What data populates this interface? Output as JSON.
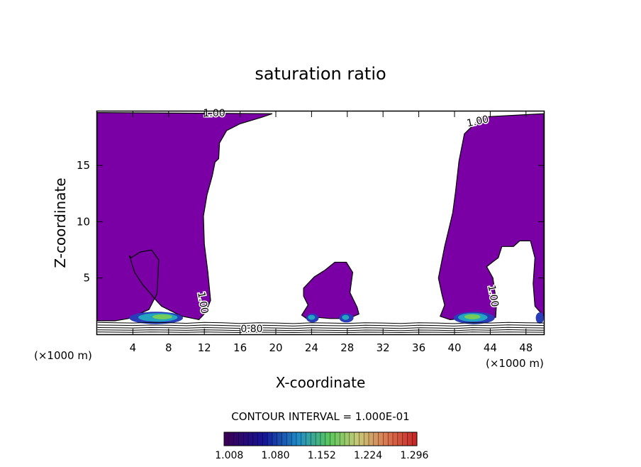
{
  "chart_data": {
    "type": "contour",
    "title": "saturation ratio",
    "xlabel": "X-coordinate",
    "ylabel": "Z-coordinate",
    "x_unit_left": "(×1000 m)",
    "x_unit_right": "(×1000 m)",
    "xlim": [
      0,
      50
    ],
    "ylim": [
      0,
      19.8
    ],
    "xticks": [
      4,
      8,
      12,
      16,
      20,
      24,
      28,
      32,
      36,
      40,
      44,
      48
    ],
    "yticks": [
      5,
      10,
      15
    ],
    "contour_interval_text": "CONTOUR INTERVAL = 1.000E-01",
    "contour_labels": [
      {
        "text": "1.00",
        "x": 13.1,
        "y": 19.6,
        "angle": 0
      },
      {
        "text": "1.00",
        "x": 42.6,
        "y": 18.9,
        "angle": -12
      },
      {
        "text": "1.00",
        "x": 11.8,
        "y": 2.8,
        "angle": 80
      },
      {
        "text": "1.00",
        "x": 44.3,
        "y": 3.4,
        "angle": 80
      },
      {
        "text": "0.80",
        "x": 17.3,
        "y": 0.45,
        "angle": 0
      }
    ],
    "colorbar": {
      "ticks": [
        "1.008",
        "1.080",
        "1.152",
        "1.224",
        "1.296"
      ],
      "min": 1.0,
      "max": 1.3
    },
    "fill_color": "#7a00a6",
    "regions": [
      {
        "level": "1.00",
        "points": [
          [
            0,
            19.7
          ],
          [
            19.6,
            19.6
          ],
          [
            18.5,
            19.3
          ],
          [
            16,
            18.7
          ],
          [
            14.5,
            18.1
          ],
          [
            13.7,
            17
          ],
          [
            13.6,
            15.6
          ],
          [
            13.2,
            15.3
          ],
          [
            12.9,
            14.1
          ],
          [
            12.3,
            12.4
          ],
          [
            11.9,
            10.5
          ],
          [
            12,
            8
          ],
          [
            12.4,
            5.5
          ],
          [
            12.7,
            3
          ],
          [
            12.1,
            1.9
          ],
          [
            11.4,
            1.3
          ],
          [
            9.5,
            1.6
          ],
          [
            8.2,
            2.1
          ],
          [
            7.2,
            2.5
          ],
          [
            6.5,
            3.1
          ],
          [
            6,
            3.6
          ],
          [
            5.1,
            4.4
          ],
          [
            4.2,
            5.5
          ],
          [
            3.6,
            7
          ],
          [
            3.8,
            6.8
          ],
          [
            4.8,
            7.3
          ],
          [
            6.1,
            7.5
          ],
          [
            6.9,
            6.6
          ],
          [
            6.7,
            3.6
          ],
          [
            5.8,
            2.2
          ],
          [
            3.5,
            1.4
          ],
          [
            2,
            1.2
          ],
          [
            0,
            1.2
          ]
        ]
      },
      {
        "level": "1.00",
        "points": [
          [
            22.9,
            1.7
          ],
          [
            23.6,
            2.6
          ],
          [
            23.1,
            3.4
          ],
          [
            23.1,
            4.1
          ],
          [
            24.3,
            5.1
          ],
          [
            25.5,
            5.7
          ],
          [
            26.6,
            6.4
          ],
          [
            27.9,
            6.4
          ],
          [
            28.6,
            5.5
          ],
          [
            28.3,
            3.7
          ],
          [
            29.1,
            2.4
          ],
          [
            29.3,
            1.8
          ],
          [
            28.1,
            1.4
          ],
          [
            26.1,
            1.4
          ],
          [
            24.6,
            1.5
          ],
          [
            23.6,
            1.3
          ]
        ]
      },
      {
        "level": "1.00",
        "points": [
          [
            50,
            19.6
          ],
          [
            43,
            19.3
          ],
          [
            41.1,
            17.8
          ],
          [
            40.5,
            15.4
          ],
          [
            40.1,
            12.6
          ],
          [
            39.8,
            10.8
          ],
          [
            38.9,
            7.8
          ],
          [
            38.2,
            5
          ],
          [
            38.6,
            3.5
          ],
          [
            38.9,
            2.6
          ],
          [
            38.4,
            1.6
          ],
          [
            39.5,
            1.3
          ],
          [
            43.4,
            1.6
          ],
          [
            44.6,
            1.5
          ],
          [
            44.7,
            2.7
          ],
          [
            44.3,
            5
          ],
          [
            43.6,
            6
          ],
          [
            44.4,
            6.5
          ],
          [
            44.9,
            6.8
          ],
          [
            45.3,
            7.8
          ],
          [
            46.6,
            7.8
          ],
          [
            47.3,
            8.3
          ],
          [
            48.5,
            8.3
          ],
          [
            49,
            6.8
          ],
          [
            48.8,
            4.5
          ],
          [
            49,
            2.5
          ],
          [
            50,
            1.6
          ]
        ]
      }
    ],
    "isolines": [
      [
        [
          0.05,
          1.05
        ],
        [
          2,
          1.02
        ],
        [
          4,
          1.0
        ],
        [
          6,
          1.05
        ],
        [
          8,
          1.02
        ],
        [
          10,
          0.98
        ],
        [
          12,
          1.05
        ],
        [
          14,
          1.02
        ],
        [
          16,
          0.96
        ],
        [
          18,
          1.02
        ],
        [
          20,
          1.0
        ],
        [
          22,
          0.95
        ],
        [
          24,
          1.02
        ],
        [
          26,
          1.0
        ],
        [
          28,
          0.97
        ],
        [
          30,
          1.02
        ],
        [
          32,
          1.0
        ],
        [
          34,
          0.96
        ],
        [
          36,
          1.02
        ],
        [
          38,
          1.0
        ],
        [
          40,
          0.95
        ],
        [
          42,
          1.03
        ],
        [
          44,
          1.0
        ],
        [
          46,
          1.05
        ],
        [
          48,
          1.02
        ],
        [
          50,
          1.0
        ]
      ],
      [
        [
          0.05,
          0.82
        ],
        [
          2,
          0.8
        ],
        [
          4,
          0.78
        ],
        [
          6,
          0.82
        ],
        [
          8,
          0.8
        ],
        [
          10,
          0.76
        ],
        [
          12,
          0.82
        ],
        [
          14,
          0.79
        ],
        [
          16,
          0.74
        ],
        [
          18,
          0.8
        ],
        [
          20,
          0.78
        ],
        [
          22,
          0.73
        ],
        [
          24,
          0.8
        ],
        [
          26,
          0.77
        ],
        [
          28,
          0.75
        ],
        [
          30,
          0.8
        ],
        [
          32,
          0.78
        ],
        [
          34,
          0.74
        ],
        [
          36,
          0.8
        ],
        [
          38,
          0.78
        ],
        [
          40,
          0.73
        ],
        [
          42,
          0.81
        ],
        [
          44,
          0.78
        ],
        [
          46,
          0.83
        ],
        [
          48,
          0.8
        ],
        [
          50,
          0.78
        ]
      ],
      [
        [
          0.05,
          0.6
        ],
        [
          2,
          0.58
        ],
        [
          4,
          0.56
        ],
        [
          6,
          0.6
        ],
        [
          8,
          0.58
        ],
        [
          10,
          0.55
        ],
        [
          12,
          0.6
        ],
        [
          14,
          0.57
        ],
        [
          16,
          0.53
        ],
        [
          18,
          0.58
        ],
        [
          20,
          0.56
        ],
        [
          22,
          0.52
        ],
        [
          24,
          0.58
        ],
        [
          26,
          0.55
        ],
        [
          28,
          0.53
        ],
        [
          30,
          0.58
        ],
        [
          32,
          0.56
        ],
        [
          34,
          0.52
        ],
        [
          36,
          0.58
        ],
        [
          38,
          0.56
        ],
        [
          40,
          0.52
        ],
        [
          42,
          0.59
        ],
        [
          44,
          0.56
        ],
        [
          46,
          0.61
        ],
        [
          48,
          0.58
        ],
        [
          50,
          0.56
        ]
      ],
      [
        [
          0.05,
          0.4
        ],
        [
          2,
          0.38
        ],
        [
          4,
          0.36
        ],
        [
          6,
          0.4
        ],
        [
          8,
          0.38
        ],
        [
          10,
          0.35
        ],
        [
          12,
          0.4
        ],
        [
          14,
          0.37
        ],
        [
          16,
          0.33
        ],
        [
          18,
          0.38
        ],
        [
          20,
          0.36
        ],
        [
          22,
          0.33
        ],
        [
          24,
          0.38
        ],
        [
          26,
          0.35
        ],
        [
          28,
          0.33
        ],
        [
          30,
          0.38
        ],
        [
          32,
          0.36
        ],
        [
          34,
          0.32
        ],
        [
          36,
          0.38
        ],
        [
          38,
          0.36
        ],
        [
          40,
          0.32
        ],
        [
          42,
          0.39
        ],
        [
          44,
          0.36
        ],
        [
          46,
          0.41
        ],
        [
          48,
          0.38
        ],
        [
          50,
          0.36
        ]
      ],
      [
        [
          0.05,
          0.2
        ],
        [
          2,
          0.19
        ],
        [
          4,
          0.17
        ],
        [
          6,
          0.2
        ],
        [
          8,
          0.19
        ],
        [
          10,
          0.17
        ],
        [
          12,
          0.2
        ],
        [
          14,
          0.18
        ],
        [
          16,
          0.16
        ],
        [
          18,
          0.19
        ],
        [
          20,
          0.18
        ],
        [
          22,
          0.16
        ],
        [
          24,
          0.19
        ],
        [
          26,
          0.17
        ],
        [
          28,
          0.16
        ],
        [
          30,
          0.19
        ],
        [
          32,
          0.18
        ],
        [
          34,
          0.16
        ],
        [
          36,
          0.19
        ],
        [
          38,
          0.18
        ],
        [
          40,
          0.16
        ],
        [
          42,
          0.2
        ],
        [
          44,
          0.18
        ],
        [
          46,
          0.21
        ],
        [
          48,
          0.19
        ],
        [
          50,
          0.18
        ]
      ]
    ],
    "hot_spots": [
      {
        "x": 3.6,
        "y": 1.45,
        "w": 6.0,
        "h": 0.55,
        "color": "#2a3cb8"
      },
      {
        "x": 4.6,
        "y": 1.5,
        "w": 4.4,
        "h": 0.38,
        "color": "#25a4c2"
      },
      {
        "x": 6.2,
        "y": 1.55,
        "w": 2.2,
        "h": 0.22,
        "color": "#74cc5a"
      },
      {
        "x": 23.4,
        "y": 1.45,
        "w": 1.4,
        "h": 0.4,
        "color": "#2a3cb8"
      },
      {
        "x": 23.6,
        "y": 1.5,
        "w": 0.8,
        "h": 0.22,
        "color": "#25a4c2"
      },
      {
        "x": 27.1,
        "y": 1.45,
        "w": 1.6,
        "h": 0.4,
        "color": "#2a3cb8"
      },
      {
        "x": 27.4,
        "y": 1.5,
        "w": 0.8,
        "h": 0.22,
        "color": "#25a4c2"
      },
      {
        "x": 39.9,
        "y": 1.45,
        "w": 4.6,
        "h": 0.55,
        "color": "#2a3cb8"
      },
      {
        "x": 40.4,
        "y": 1.5,
        "w": 3.3,
        "h": 0.38,
        "color": "#25a4c2"
      },
      {
        "x": 41.1,
        "y": 1.55,
        "w": 1.8,
        "h": 0.22,
        "color": "#74cc5a"
      },
      {
        "x": 49.1,
        "y": 1.45,
        "w": 0.9,
        "h": 0.5,
        "color": "#2a3cb8"
      }
    ],
    "grid": false,
    "legend": "bottom"
  }
}
